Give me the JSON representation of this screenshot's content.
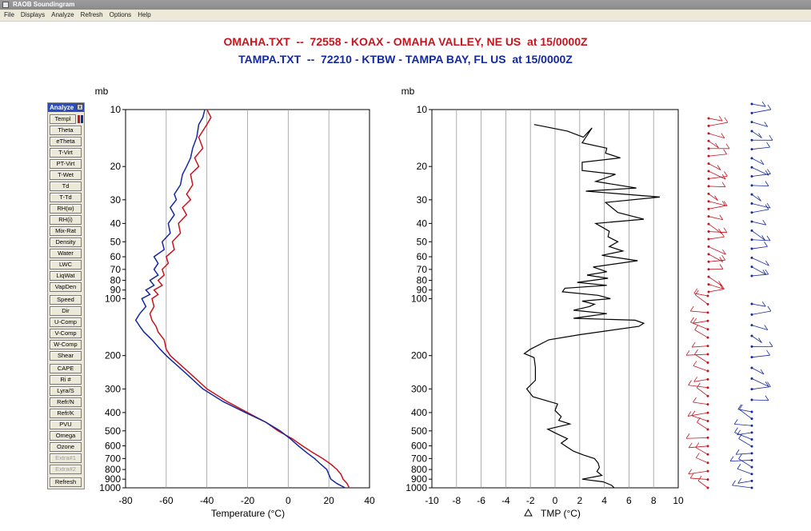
{
  "window": {
    "title": "RAOB Soundingram"
  },
  "menu": [
    "File",
    "Displays",
    "Analyze",
    "Refresh",
    "Options",
    "Help"
  ],
  "header": {
    "line1": "OMAHA.TXT  --  72558 - KOAX - OMAHA VALLEY, NE US  at 15/0000Z",
    "line2": "TAMPA.TXT  --  72210 - KTBW - TAMPA BAY, FL US  at 15/0000Z"
  },
  "analyze_panel": {
    "title": "Analyze",
    "buttons": [
      "Templ",
      "Theta",
      "eTheta",
      "T-Virt",
      "PT-Virt",
      "T-Wet",
      "Td",
      "T-Td",
      "RH(w)",
      "RH(i)",
      "Mix-Rat",
      "Density",
      "Water",
      "LWC",
      "LiqWat",
      "VapDen",
      "Speed",
      "Dir",
      "U-Comp",
      "V-Comp",
      "W-Comp",
      "Shear",
      "CAPE",
      "Ri #",
      "Lyra/S",
      "Refr/N",
      "Refr/K",
      "PVU",
      "Omega",
      "Ozone",
      "Extra#1",
      "Extra#2",
      "Refresh"
    ],
    "disabled": [
      "Extra#1",
      "Extra#2"
    ]
  },
  "colors": {
    "omaha": "#c8141e",
    "tampa": "#1428a0",
    "diff": "#000000"
  },
  "chart_data": [
    {
      "type": "line",
      "ylabel": "mb",
      "xlabel": "Temperature (°C)",
      "xlim": [
        -80,
        40
      ],
      "ylim": [
        1000,
        10
      ],
      "y_scale": "log (pressure)",
      "yticks": [
        10,
        20,
        30,
        40,
        50,
        60,
        70,
        80,
        90,
        100,
        200,
        300,
        400,
        500,
        600,
        700,
        800,
        900,
        1000
      ],
      "xticks": [
        -80,
        -60,
        -40,
        -20,
        0,
        20,
        40
      ],
      "grid": true,
      "series": [
        {
          "name": "OMAHA.TXT",
          "points": [
            [
              -40,
              10
            ],
            [
              -38,
              11
            ],
            [
              -40,
              12
            ],
            [
              -44,
              14
            ],
            [
              -42,
              16
            ],
            [
              -46,
              18
            ],
            [
              -44,
              20
            ],
            [
              -48,
              22
            ],
            [
              -47,
              25
            ],
            [
              -50,
              28
            ],
            [
              -48,
              30
            ],
            [
              -52,
              33
            ],
            [
              -50,
              36
            ],
            [
              -54,
              40
            ],
            [
              -53,
              45
            ],
            [
              -57,
              50
            ],
            [
              -56,
              55
            ],
            [
              -60,
              60
            ],
            [
              -59,
              65
            ],
            [
              -62,
              70
            ],
            [
              -61,
              75
            ],
            [
              -64,
              80
            ],
            [
              -62,
              85
            ],
            [
              -66,
              90
            ],
            [
              -64,
              95
            ],
            [
              -67,
              100
            ],
            [
              -66,
              110
            ],
            [
              -68,
              120
            ],
            [
              -67,
              130
            ],
            [
              -65,
              140
            ],
            [
              -64,
              150
            ],
            [
              -61,
              165
            ],
            [
              -60,
              185
            ],
            [
              -58,
              200
            ],
            [
              -48,
              250
            ],
            [
              -40,
              300
            ],
            [
              -30,
              350
            ],
            [
              -20,
              400
            ],
            [
              -11,
              450
            ],
            [
              -5,
              500
            ],
            [
              2,
              550
            ],
            [
              7,
              600
            ],
            [
              12,
              650
            ],
            [
              17,
              700
            ],
            [
              21,
              750
            ],
            [
              24,
              800
            ],
            [
              26,
              850
            ],
            [
              27,
              900
            ],
            [
              29,
              950
            ],
            [
              30,
              1000
            ]
          ]
        },
        {
          "name": "TAMPA.TXT",
          "points": [
            [
              -41,
              10
            ],
            [
              -42,
              11
            ],
            [
              -44,
              12
            ],
            [
              -45,
              14
            ],
            [
              -47,
              16
            ],
            [
              -48,
              18
            ],
            [
              -50,
              20
            ],
            [
              -52,
              22
            ],
            [
              -53,
              25
            ],
            [
              -56,
              28
            ],
            [
              -55,
              30
            ],
            [
              -58,
              33
            ],
            [
              -56,
              36
            ],
            [
              -59,
              40
            ],
            [
              -58,
              45
            ],
            [
              -62,
              50
            ],
            [
              -61,
              55
            ],
            [
              -66,
              60
            ],
            [
              -64,
              65
            ],
            [
              -66,
              70
            ],
            [
              -64,
              75
            ],
            [
              -68,
              80
            ],
            [
              -66,
              85
            ],
            [
              -70,
              90
            ],
            [
              -68,
              95
            ],
            [
              -72,
              100
            ],
            [
              -70,
              110
            ],
            [
              -73,
              120
            ],
            [
              -75,
              130
            ],
            [
              -73,
              140
            ],
            [
              -71,
              150
            ],
            [
              -67,
              165
            ],
            [
              -63,
              185
            ],
            [
              -60,
              200
            ],
            [
              -50,
              250
            ],
            [
              -42,
              300
            ],
            [
              -32,
              350
            ],
            [
              -21,
              400
            ],
            [
              -11,
              450
            ],
            [
              -4,
              500
            ],
            [
              1,
              550
            ],
            [
              5,
              600
            ],
            [
              9,
              650
            ],
            [
              13,
              700
            ],
            [
              16,
              750
            ],
            [
              19,
              800
            ],
            [
              20,
              850
            ],
            [
              21,
              900
            ],
            [
              24,
              950
            ],
            [
              28,
              1000
            ]
          ]
        }
      ]
    },
    {
      "type": "line",
      "ylabel": "mb",
      "xlabel": "TMP (°C)",
      "xlim": [
        -10,
        10
      ],
      "ylim": [
        1000,
        10
      ],
      "y_scale": "log (pressure)",
      "yticks": [
        10,
        20,
        30,
        40,
        50,
        60,
        70,
        80,
        90,
        100,
        200,
        300,
        400,
        500,
        600,
        700,
        800,
        900,
        1000
      ],
      "xticks": [
        -10,
        -8,
        -6,
        -4,
        -2,
        0,
        2,
        4,
        6,
        8,
        10
      ],
      "grid": true,
      "series": [
        {
          "name": "TMP",
          "points": [
            [
              -1.7,
              12
            ],
            [
              1,
              13
            ],
            [
              2.3,
              14
            ],
            [
              3,
              12.5
            ],
            [
              2.2,
              15
            ],
            [
              4.2,
              16
            ],
            [
              4.1,
              17
            ],
            [
              5.3,
              18
            ],
            [
              2.2,
              19
            ],
            [
              2.2,
              21
            ],
            [
              4.9,
              22
            ],
            [
              3.3,
              24
            ],
            [
              6.6,
              26
            ],
            [
              2.5,
              27
            ],
            [
              8.5,
              29
            ],
            [
              4.1,
              31
            ],
            [
              5.1,
              35
            ],
            [
              7.2,
              38
            ],
            [
              3.3,
              40
            ],
            [
              4.4,
              44
            ],
            [
              4.3,
              47
            ],
            [
              5.1,
              50
            ],
            [
              4.4,
              53
            ],
            [
              5.5,
              56
            ],
            [
              3.8,
              59
            ],
            [
              6.7,
              63
            ],
            [
              3.1,
              68
            ],
            [
              4.2,
              72
            ],
            [
              2.6,
              75
            ],
            [
              4.3,
              78
            ],
            [
              1.8,
              82
            ],
            [
              4.2,
              85
            ],
            [
              0.8,
              88
            ],
            [
              0.6,
              92
            ],
            [
              3.5,
              96
            ],
            [
              4.5,
              100
            ],
            [
              2.2,
              103
            ],
            [
              3.2,
              107
            ],
            [
              2.8,
              110
            ],
            [
              1.5,
              115
            ],
            [
              4.2,
              120
            ],
            [
              1.5,
              127
            ],
            [
              6.5,
              130
            ],
            [
              7.2,
              135
            ],
            [
              6.8,
              140
            ],
            [
              2,
              155
            ],
            [
              -0.5,
              165
            ],
            [
              -2,
              185
            ],
            [
              -2.5,
              195
            ],
            [
              -1.7,
              205
            ],
            [
              -1.6,
              230
            ],
            [
              -1.6,
              270
            ],
            [
              -2.3,
              300
            ],
            [
              -1.8,
              330
            ],
            [
              0.2,
              360
            ],
            [
              0,
              390
            ],
            [
              0.5,
              420
            ],
            [
              0.3,
              440
            ],
            [
              1.2,
              460
            ],
            [
              -0.6,
              490
            ],
            [
              0.2,
              520
            ],
            [
              1,
              550
            ],
            [
              0.5,
              580
            ],
            [
              1,
              610
            ],
            [
              1.5,
              640
            ],
            [
              2.3,
              670
            ],
            [
              3.2,
              700
            ],
            [
              3.5,
              740
            ],
            [
              3.6,
              780
            ],
            [
              3.4,
              820
            ],
            [
              3.8,
              860
            ],
            [
              2.2,
              900
            ],
            [
              3.9,
              930
            ],
            [
              4.6,
              970
            ],
            [
              4.8,
              1000
            ]
          ]
        }
      ]
    },
    {
      "type": "wind-barbs",
      "series": [
        {
          "name": "OMAHA.TXT"
        },
        {
          "name": "TAMPA.TXT"
        }
      ]
    }
  ]
}
